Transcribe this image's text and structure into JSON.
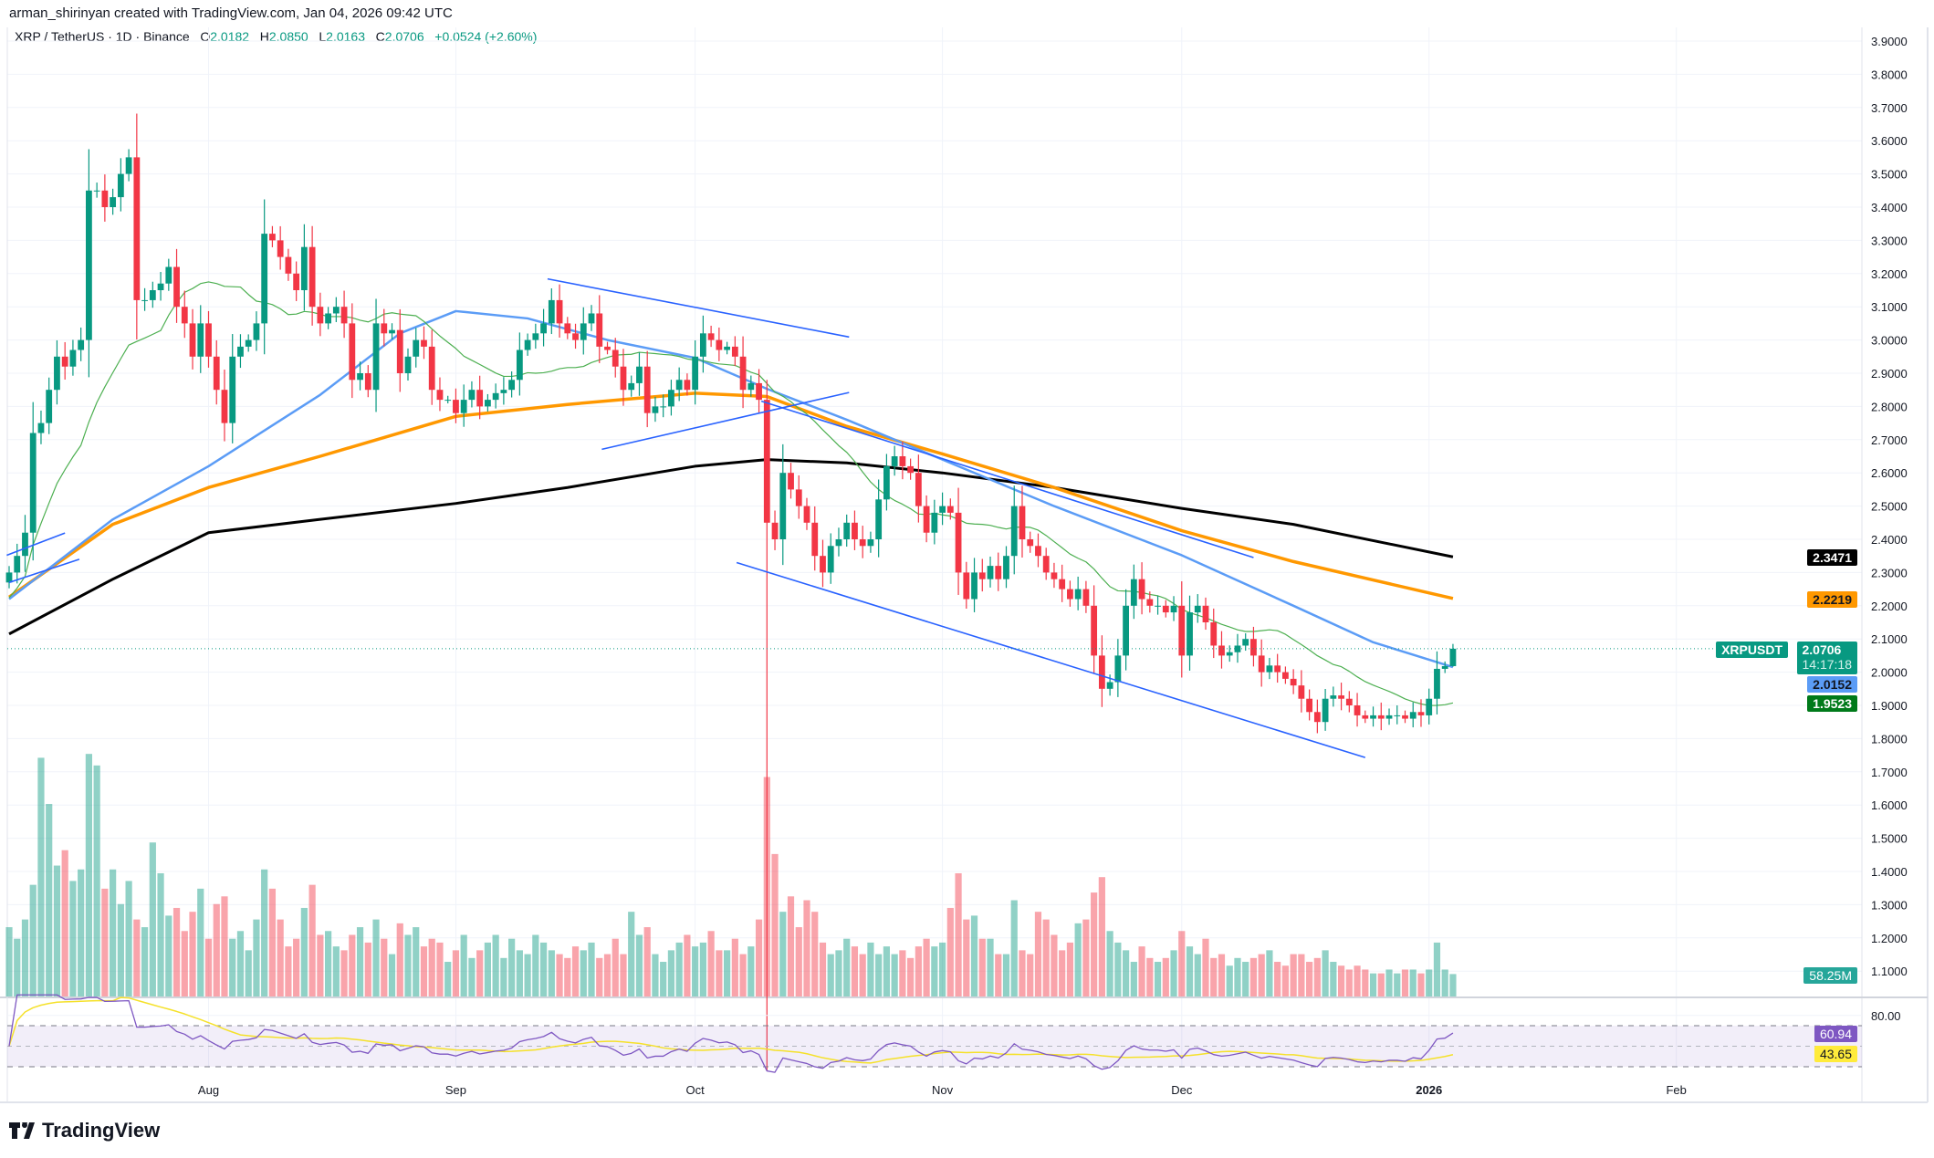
{
  "credit": "arman_shirinyan created with TradingView.com, Jan 04, 2026 09:42 UTC",
  "legend": {
    "symbol": "XRP / TetherUS · 1D · Binance",
    "o_label": "O",
    "o": "2.0182",
    "h_label": "H",
    "h": "2.0850",
    "l_label": "L",
    "l": "2.0163",
    "c_label": "C",
    "c": "2.0706",
    "change": "+0.0524 (+2.60%)"
  },
  "badges": {
    "ma_black": "2.3471",
    "ma_orange": "2.2219",
    "ticker": "XRPUSDT",
    "last_price": "2.0706",
    "countdown": "14:17:18",
    "ma_blue": "2.0152",
    "ma_green": "1.9523",
    "volume": "58.25M",
    "rsi": "60.94",
    "rsi_ma": "43.65"
  },
  "logo": "TradingView",
  "colors": {
    "up": "#089981",
    "down": "#f23645",
    "ma_black": "#000000",
    "ma_orange": "#ff9800",
    "ma_blue": "#5b9cf6",
    "ma_green": "#4caf50",
    "trend": "#2962ff",
    "rsi": "#7e57c2",
    "rsi_ma": "#f5e12a"
  },
  "chart_data": {
    "type": "candlestick",
    "title": "XRP / TetherUS · 1D · Binance",
    "ylim": [
      1.05,
      3.93
    ],
    "price_ticks": [
      "3.9000",
      "3.8000",
      "3.7000",
      "3.6000",
      "3.5000",
      "3.4000",
      "3.3000",
      "3.2000",
      "3.1000",
      "3.0000",
      "2.9000",
      "2.8000",
      "2.7000",
      "2.6000",
      "2.5000",
      "2.4000",
      "2.3000",
      "2.2000",
      "2.1000",
      "2.0000",
      "1.9000",
      "1.8000",
      "1.7000",
      "1.6000",
      "1.5000",
      "1.4000",
      "1.3000",
      "1.2000",
      "1.1000"
    ],
    "time_ticks": [
      {
        "label": "Aug",
        "day_index": 25
      },
      {
        "label": "Sep",
        "day_index": 56
      },
      {
        "label": "Oct",
        "day_index": 86
      },
      {
        "label": "Nov",
        "day_index": 117
      },
      {
        "label": "Dec",
        "day_index": 147
      },
      {
        "label": "2026",
        "day_index": 178
      },
      {
        "label": "Feb",
        "day_index": 209
      }
    ],
    "start_date": "Jul 07",
    "closes": [
      2.3,
      2.35,
      2.42,
      2.72,
      2.75,
      2.85,
      2.95,
      2.92,
      2.97,
      3.0,
      3.45,
      3.45,
      3.4,
      3.43,
      3.5,
      3.55,
      3.12,
      3.12,
      3.15,
      3.17,
      3.22,
      3.1,
      3.05,
      2.95,
      3.05,
      2.95,
      2.85,
      2.75,
      2.95,
      2.98,
      3.0,
      3.05,
      3.32,
      3.3,
      3.25,
      3.2,
      3.15,
      3.28,
      3.1,
      3.05,
      3.08,
      3.1,
      3.05,
      2.88,
      2.9,
      2.85,
      3.05,
      3.02,
      3.03,
      2.9,
      2.95,
      3.0,
      2.98,
      2.85,
      2.82,
      2.82,
      2.78,
      2.82,
      2.85,
      2.8,
      2.82,
      2.84,
      2.85,
      2.88,
      2.97,
      3.0,
      3.02,
      3.05,
      3.12,
      3.05,
      3.02,
      3.0,
      3.05,
      3.08,
      2.98,
      2.97,
      2.92,
      2.85,
      2.87,
      2.92,
      2.78,
      2.8,
      2.8,
      2.85,
      2.88,
      2.85,
      2.95,
      3.02,
      3.0,
      2.97,
      2.98,
      2.95,
      2.85,
      2.87,
      2.82,
      2.45,
      2.4,
      2.6,
      2.55,
      2.5,
      2.45,
      2.35,
      2.3,
      2.38,
      2.4,
      2.45,
      2.4,
      2.38,
      2.4,
      2.52,
      2.62,
      2.65,
      2.62,
      2.6,
      2.5,
      2.42,
      2.48,
      2.5,
      2.48,
      2.3,
      2.22,
      2.3,
      2.28,
      2.32,
      2.28,
      2.35,
      2.5,
      2.4,
      2.38,
      2.35,
      2.3,
      2.28,
      2.25,
      2.22,
      2.25,
      2.2,
      2.05,
      1.95,
      1.97,
      2.05,
      2.2,
      2.28,
      2.22,
      2.2,
      2.2,
      2.18,
      2.2,
      2.05,
      2.18,
      2.2,
      2.15,
      2.08,
      2.05,
      2.06,
      2.08,
      2.1,
      2.05,
      2.0,
      2.02,
      2.0,
      1.98,
      1.96,
      1.92,
      1.88,
      1.85,
      1.92,
      1.93,
      1.92,
      1.9,
      1.87,
      1.86,
      1.87,
      1.86,
      1.87,
      1.87,
      1.86,
      1.88,
      1.87,
      1.92,
      2.01,
      2.0182,
      2.0706
    ],
    "volumes_m": [
      180,
      150,
      200,
      290,
      620,
      500,
      340,
      380,
      300,
      330,
      630,
      600,
      280,
      330,
      240,
      300,
      200,
      180,
      400,
      320,
      210,
      230,
      170,
      220,
      280,
      150,
      240,
      260,
      150,
      170,
      120,
      200,
      330,
      280,
      200,
      130,
      150,
      230,
      290,
      160,
      170,
      130,
      120,
      160,
      180,
      140,
      200,
      150,
      110,
      190,
      160,
      180,
      130,
      150,
      140,
      90,
      120,
      160,
      100,
      120,
      140,
      160,
      100,
      150,
      120,
      110,
      160,
      140,
      120,
      110,
      100,
      130,
      120,
      140,
      100,
      110,
      150,
      110,
      220,
      160,
      180,
      110,
      90,
      120,
      140,
      160,
      130,
      140,
      170,
      120,
      120,
      150,
      110,
      130,
      200,
      570,
      370,
      220,
      260,
      180,
      250,
      220,
      140,
      110,
      120,
      150,
      130,
      110,
      140,
      110,
      130,
      110,
      120,
      100,
      130,
      150,
      130,
      140,
      230,
      320,
      200,
      210,
      150,
      150,
      110,
      110,
      250,
      120,
      110,
      220,
      200,
      160,
      120,
      140,
      190,
      200,
      270,
      310,
      170,
      140,
      120,
      90,
      130,
      100,
      90,
      100,
      120,
      170,
      130,
      110,
      150,
      100,
      110,
      80,
      100,
      90,
      100,
      110,
      120,
      90,
      80,
      110,
      110,
      90,
      100,
      120,
      90,
      80,
      70,
      80,
      70,
      60,
      60,
      70,
      60,
      70,
      70,
      60,
      70,
      140,
      70,
      58.25
    ],
    "last_bar": {
      "open": 2.0182,
      "high": 2.085,
      "low": 2.0163,
      "close": 2.0706
    },
    "wick_overrides": [
      {
        "day_index": 95,
        "low": 0.8,
        "high": 2.88
      }
    ],
    "moving_averages": [
      {
        "name": "ma_black",
        "points": [
          [
            0,
            2.115
          ],
          [
            13,
            2.28
          ],
          [
            25,
            2.42
          ],
          [
            39,
            2.46
          ],
          [
            56,
            2.508
          ],
          [
            70,
            2.556
          ],
          [
            86,
            2.62
          ],
          [
            95,
            2.64
          ],
          [
            105,
            2.63
          ],
          [
            117,
            2.6
          ],
          [
            131,
            2.556
          ],
          [
            147,
            2.493
          ],
          [
            161,
            2.445
          ],
          [
            181,
            2.3471
          ]
        ]
      },
      {
        "name": "ma_orange",
        "points": [
          [
            0,
            2.226
          ],
          [
            13,
            2.445
          ],
          [
            25,
            2.556
          ],
          [
            39,
            2.65
          ],
          [
            56,
            2.77
          ],
          [
            70,
            2.806
          ],
          [
            86,
            2.84
          ],
          [
            95,
            2.83
          ],
          [
            105,
            2.74
          ],
          [
            117,
            2.657
          ],
          [
            131,
            2.556
          ],
          [
            147,
            2.426
          ],
          [
            161,
            2.333
          ],
          [
            181,
            2.2219
          ]
        ]
      },
      {
        "name": "ma_blue",
        "points": [
          [
            0,
            2.22
          ],
          [
            13,
            2.46
          ],
          [
            25,
            2.62
          ],
          [
            39,
            2.835
          ],
          [
            49,
            3.02
          ],
          [
            56,
            3.087
          ],
          [
            65,
            3.065
          ],
          [
            75,
            3.0
          ],
          [
            86,
            2.946
          ],
          [
            95,
            2.853
          ],
          [
            105,
            2.76
          ],
          [
            117,
            2.64
          ],
          [
            131,
            2.5
          ],
          [
            147,
            2.352
          ],
          [
            161,
            2.2
          ],
          [
            171,
            2.09
          ],
          [
            181,
            2.0152
          ]
        ]
      }
    ],
    "sma_green_period": 20,
    "rsi_period": 14,
    "rsi_levels": {
      "upper": 70,
      "middle": 50,
      "lower": 30
    },
    "rsi_tick": "80.00",
    "trendlines": [
      {
        "from": [
          67.5,
          3.184
        ],
        "to": [
          105.3,
          3.009
        ]
      },
      {
        "from": [
          74.3,
          2.671
        ],
        "to": [
          105.3,
          2.842
        ]
      },
      {
        "from": [
          94.3,
          2.816
        ],
        "to": [
          156,
          2.345
        ]
      },
      {
        "from": [
          91.2,
          2.33
        ],
        "to": [
          170,
          1.743
        ]
      },
      {
        "from": [
          -0.3,
          2.352
        ],
        "to": [
          7,
          2.419
        ]
      },
      {
        "from": [
          0,
          2.27
        ],
        "to": [
          8.8,
          2.34
        ]
      }
    ]
  }
}
